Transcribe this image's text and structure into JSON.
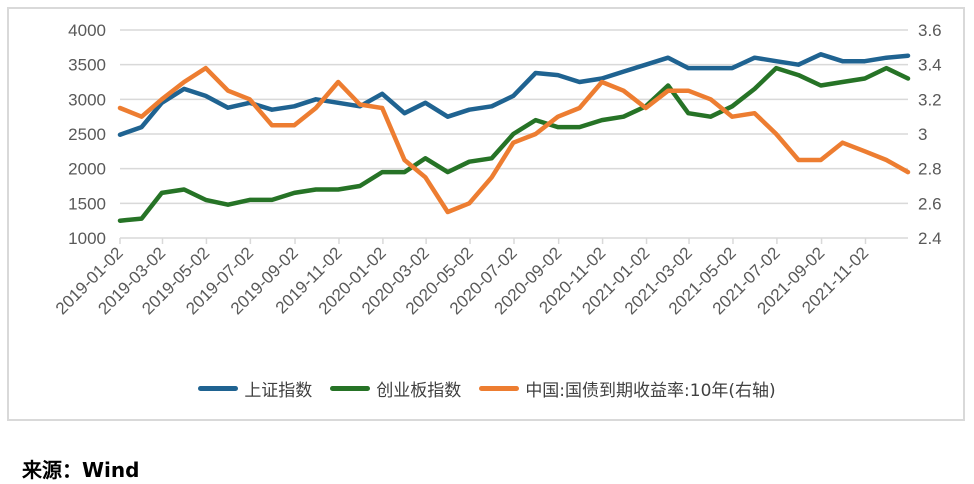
{
  "chart_data": {
    "type": "line",
    "xlabel": "",
    "ylabel": "",
    "ylim_left": [
      1000,
      4000
    ],
    "yticks_left": [
      1000,
      1500,
      2000,
      2500,
      3000,
      3500,
      4000
    ],
    "ylim_right": [
      2.4,
      3.6
    ],
    "yticks_right": [
      "2.4",
      "2.6",
      "2.8",
      "3",
      "3.2",
      "3.4",
      "3.6"
    ],
    "xlim": [
      "2019-01-02",
      "2021-12-31"
    ],
    "xticks": [
      "2019-01-02",
      "2019-03-02",
      "2019-05-02",
      "2019-07-02",
      "2019-09-02",
      "2019-11-02",
      "2020-01-02",
      "2020-03-02",
      "2020-05-02",
      "2020-07-02",
      "2020-09-02",
      "2020-11-02",
      "2021-01-02",
      "2021-03-02",
      "2021-05-02",
      "2021-07-02",
      "2021-09-02",
      "2021-11-02"
    ],
    "grid": true,
    "legend_position": "bottom",
    "x": [
      "2019-01-02",
      "2019-02-01",
      "2019-03-01",
      "2019-04-01",
      "2019-05-01",
      "2019-06-01",
      "2019-07-01",
      "2019-08-01",
      "2019-09-01",
      "2019-10-01",
      "2019-11-01",
      "2019-12-01",
      "2020-01-01",
      "2020-02-01",
      "2020-03-01",
      "2020-04-01",
      "2020-05-01",
      "2020-06-01",
      "2020-07-01",
      "2020-08-01",
      "2020-09-01",
      "2020-10-01",
      "2020-11-01",
      "2020-12-01",
      "2021-01-01",
      "2021-02-01",
      "2021-03-01",
      "2021-04-01",
      "2021-05-01",
      "2021-06-01",
      "2021-07-01",
      "2021-08-01",
      "2021-09-01",
      "2021-10-01",
      "2021-11-01",
      "2021-12-01",
      "2021-12-31"
    ],
    "series": [
      {
        "name": "上证指数",
        "axis": "left",
        "color": "#1f6391",
        "values": [
          2490,
          2600,
          2950,
          3150,
          3050,
          2880,
          2950,
          2850,
          2900,
          3000,
          2950,
          2900,
          3080,
          2800,
          2950,
          2750,
          2850,
          2900,
          3050,
          3380,
          3350,
          3250,
          3300,
          3400,
          3500,
          3600,
          3450,
          3450,
          3450,
          3600,
          3550,
          3500,
          3650,
          3550,
          3550,
          3600,
          3630
        ]
      },
      {
        "name": "创业板指数",
        "axis": "left",
        "color": "#267326",
        "values": [
          1250,
          1280,
          1650,
          1700,
          1550,
          1480,
          1550,
          1550,
          1650,
          1700,
          1700,
          1750,
          1950,
          1950,
          2150,
          1950,
          2100,
          2150,
          2500,
          2700,
          2600,
          2600,
          2700,
          2750,
          2900,
          3200,
          2800,
          2750,
          2900,
          3150,
          3450,
          3350,
          3200,
          3250,
          3300,
          3450,
          3300
        ]
      },
      {
        "name": "中国:国债到期收益率:10年(右轴)",
        "axis": "right",
        "color": "#ed7d31",
        "values": [
          3.15,
          3.1,
          3.2,
          3.3,
          3.38,
          3.25,
          3.2,
          3.05,
          3.05,
          3.15,
          3.3,
          3.17,
          3.15,
          2.85,
          2.75,
          2.55,
          2.6,
          2.75,
          2.95,
          3.0,
          3.1,
          3.15,
          3.3,
          3.25,
          3.15,
          3.25,
          3.25,
          3.2,
          3.1,
          3.12,
          3.0,
          2.85,
          2.85,
          2.95,
          2.9,
          2.85,
          2.78
        ]
      }
    ]
  },
  "legend": [
    "上证指数",
    "创业板指数",
    "中国:国债到期收益率:10年(右轴)"
  ],
  "source": "来源：Wind"
}
